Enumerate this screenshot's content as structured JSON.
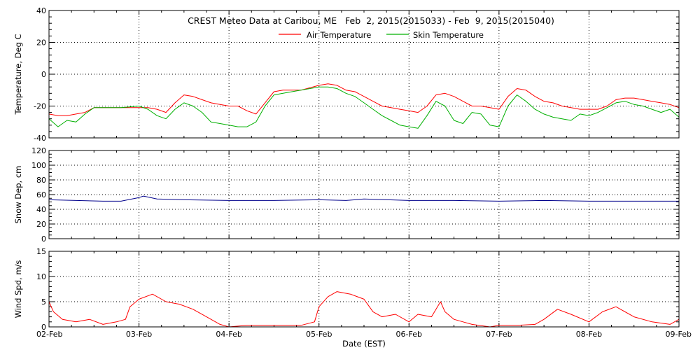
{
  "chart_data": [
    {
      "type": "line",
      "title": "CREST Meteo Data at Caribou, ME   Feb  2, 2015(2015033) - Feb  9, 2015(2015040)",
      "ylabel": "Temperature, Deg C",
      "ylim": [
        -40,
        40
      ],
      "yticks": [
        "40",
        "20",
        "0",
        "-20",
        "-40"
      ],
      "grid": true,
      "legend_position": "top-center",
      "x_range": [
        0,
        7
      ],
      "series": [
        {
          "name": "Air Temperature",
          "color": "#ff0000",
          "x": [
            0,
            0.1,
            0.2,
            0.3,
            0.4,
            0.5,
            0.6,
            0.8,
            1.0,
            1.1,
            1.2,
            1.3,
            1.4,
            1.5,
            1.6,
            1.7,
            1.8,
            1.9,
            2.0,
            2.1,
            2.2,
            2.3,
            2.4,
            2.5,
            2.6,
            2.7,
            2.8,
            3.0,
            3.1,
            3.2,
            3.3,
            3.4,
            3.5,
            3.6,
            3.7,
            3.8,
            3.9,
            4.0,
            4.1,
            4.2,
            4.3,
            4.4,
            4.5,
            4.6,
            4.7,
            4.8,
            4.9,
            5.0,
            5.1,
            5.2,
            5.3,
            5.4,
            5.5,
            5.6,
            5.7,
            5.8,
            5.9,
            6.0,
            6.1,
            6.2,
            6.3,
            6.4,
            6.5,
            6.6,
            6.7,
            6.8,
            6.9,
            7.0
          ],
          "y": [
            -25,
            -26,
            -26,
            -25,
            -24,
            -21,
            -21,
            -21,
            -21,
            -21,
            -22,
            -24,
            -18,
            -13,
            -14,
            -16,
            -18,
            -19,
            -20,
            -20,
            -23,
            -25,
            -18,
            -11,
            -10,
            -10,
            -10,
            -7,
            -6,
            -7,
            -10,
            -11,
            -14,
            -17,
            -20,
            -21,
            -22,
            -23,
            -24,
            -20,
            -13,
            -12,
            -14,
            -17,
            -20,
            -20,
            -21,
            -22,
            -14,
            -9,
            -10,
            -14,
            -17,
            -18,
            -20,
            -21,
            -22,
            -22,
            -22,
            -20,
            -16,
            -15,
            -15,
            -16,
            -17,
            -18,
            -19,
            -21
          ]
        },
        {
          "name": "Skin Temperature",
          "color": "#00b000",
          "x": [
            0,
            0.1,
            0.2,
            0.3,
            0.4,
            0.5,
            0.6,
            0.8,
            1.0,
            1.1,
            1.2,
            1.3,
            1.4,
            1.5,
            1.6,
            1.7,
            1.8,
            1.9,
            2.0,
            2.1,
            2.2,
            2.3,
            2.4,
            2.5,
            2.6,
            2.7,
            2.8,
            3.0,
            3.1,
            3.2,
            3.3,
            3.4,
            3.5,
            3.6,
            3.7,
            3.8,
            3.9,
            4.0,
            4.1,
            4.2,
            4.3,
            4.4,
            4.5,
            4.6,
            4.7,
            4.8,
            4.9,
            5.0,
            5.1,
            5.2,
            5.3,
            5.4,
            5.5,
            5.6,
            5.7,
            5.8,
            5.9,
            6.0,
            6.1,
            6.2,
            6.3,
            6.4,
            6.5,
            6.6,
            6.7,
            6.8,
            6.9,
            7.0
          ],
          "y": [
            -28,
            -33,
            -29,
            -30,
            -25,
            -21,
            -21,
            -21,
            -20,
            -22,
            -26,
            -28,
            -22,
            -18,
            -20,
            -24,
            -30,
            -31,
            -32,
            -33,
            -33,
            -30,
            -20,
            -13,
            -12,
            -11,
            -10,
            -8,
            -8,
            -9,
            -12,
            -14,
            -18,
            -22,
            -26,
            -29,
            -32,
            -33,
            -34,
            -26,
            -17,
            -20,
            -29,
            -31,
            -24,
            -25,
            -32,
            -33,
            -20,
            -13,
            -17,
            -22,
            -25,
            -27,
            -28,
            -29,
            -25,
            -26,
            -24,
            -21,
            -18,
            -17,
            -19,
            -20,
            -22,
            -24,
            -22,
            -27
          ]
        }
      ]
    },
    {
      "type": "line",
      "ylabel": "Snow Dep, cm",
      "ylim": [
        0,
        120
      ],
      "yticks": [
        "120",
        "100",
        "80",
        "60",
        "40",
        "20",
        "0"
      ],
      "grid": true,
      "x_range": [
        0,
        7
      ],
      "series": [
        {
          "color": "#00008b",
          "x": [
            0,
            0.3,
            0.6,
            0.8,
            1.0,
            1.05,
            1.2,
            1.5,
            2.0,
            2.5,
            3.0,
            3.3,
            3.5,
            4.0,
            4.5,
            5.0,
            5.5,
            6.0,
            6.5,
            7.0
          ],
          "y": [
            53,
            52,
            51,
            51,
            56,
            58,
            54,
            53,
            52,
            52,
            53,
            52,
            54,
            52,
            52,
            51,
            52,
            51,
            51,
            51
          ]
        }
      ]
    },
    {
      "type": "line",
      "ylabel": "Wind Spd, m/s",
      "xlabel": "Date (EST)",
      "ylim": [
        0,
        15
      ],
      "yticks": [
        "15",
        "10",
        "5",
        "0"
      ],
      "xticks": [
        "02-Feb",
        "03-Feb",
        "04-Feb",
        "05-Feb",
        "06-Feb",
        "07-Feb",
        "08-Feb",
        "09-Feb"
      ],
      "grid": true,
      "x_range": [
        0,
        7
      ],
      "series": [
        {
          "color": "#ff0000",
          "x": [
            0,
            0.05,
            0.15,
            0.3,
            0.45,
            0.6,
            0.75,
            0.85,
            0.9,
            1.0,
            1.15,
            1.3,
            1.45,
            1.6,
            1.75,
            1.9,
            2.0,
            2.2,
            2.5,
            2.8,
            2.95,
            3.0,
            3.1,
            3.2,
            3.35,
            3.5,
            3.6,
            3.7,
            3.85,
            4.0,
            4.1,
            4.25,
            4.35,
            4.4,
            4.5,
            4.6,
            4.7,
            4.9,
            5.0,
            5.2,
            5.4,
            5.5,
            5.65,
            5.8,
            6.0,
            6.15,
            6.3,
            6.5,
            6.7,
            6.9,
            7.0
          ],
          "y": [
            5,
            3,
            1.5,
            1,
            1.5,
            0.5,
            1,
            1.5,
            4,
            5.5,
            6.5,
            5,
            4.5,
            3.5,
            2,
            0.5,
            0,
            0.3,
            0.3,
            0.3,
            1,
            4,
            6,
            7,
            6.5,
            5.5,
            3,
            2,
            2.5,
            1,
            2.5,
            2,
            5,
            3,
            1.5,
            1,
            0.5,
            0,
            0.3,
            0.3,
            0.5,
            1.5,
            3.5,
            2.5,
            1,
            3,
            4,
            2,
            1,
            0.5,
            1.5
          ]
        }
      ]
    }
  ]
}
